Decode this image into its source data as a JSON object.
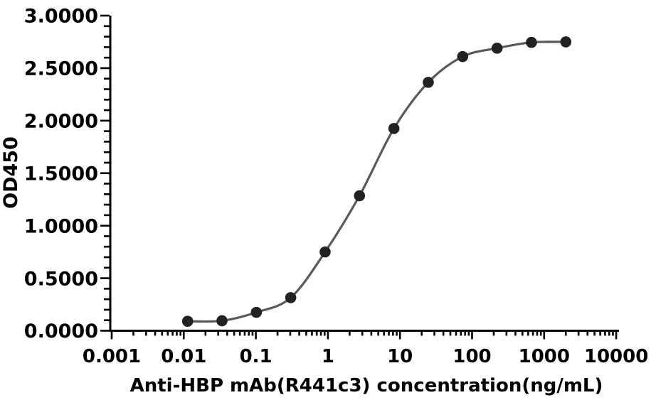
{
  "chart_data": {
    "type": "line",
    "title": "",
    "xlabel": "Anti-HBP mAb(R441c3) concentration(ng/mL)",
    "ylabel": "OD450",
    "x_scale": "log",
    "xlim": [
      0.001,
      10000
    ],
    "ylim": [
      0,
      3
    ],
    "x_tick_labels": [
      "0.001",
      "0.01",
      "0.1",
      "1",
      "10",
      "100",
      "1000",
      "10000"
    ],
    "y_tick_labels": [
      "0.0000",
      "0.5000",
      "1.0000",
      "1.5000",
      "2.0000",
      "2.5000",
      "3.0000"
    ],
    "y_minor_step": 0.1,
    "grid": false,
    "legend": null,
    "series": [
      {
        "x": [
          0.0113,
          0.0339,
          0.1016,
          0.3048,
          0.9145,
          2.743,
          8.23,
          24.69,
          74.07,
          222.2,
          666.7,
          2000
        ],
        "y": [
          0.09,
          0.095,
          0.175,
          0.315,
          0.75,
          1.285,
          1.925,
          2.365,
          2.61,
          2.69,
          2.745,
          2.75
        ],
        "marker": "circle",
        "marker_color": "#222222",
        "line_color": "#595959"
      }
    ]
  },
  "colors": {
    "axis": "#000000",
    "text": "#000000",
    "background": "#ffffff"
  }
}
